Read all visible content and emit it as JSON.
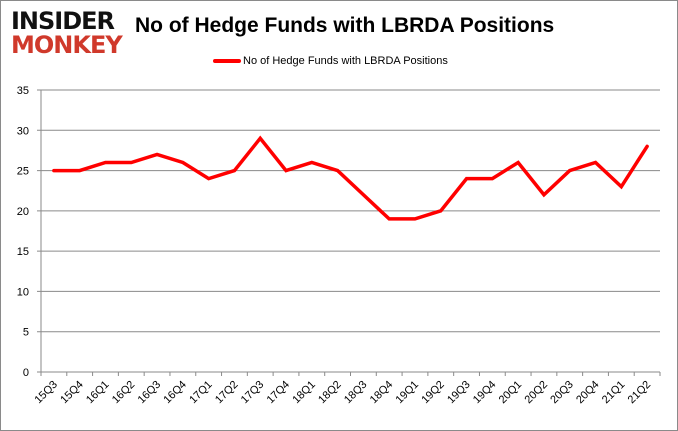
{
  "logo": {
    "line1": "INSIDER",
    "line2": "MONKEY"
  },
  "chart_data": {
    "type": "line",
    "title": "No of Hedge Funds with LBRDA Positions",
    "xlabel": "",
    "ylabel": "",
    "categories": [
      "15Q3",
      "15Q4",
      "16Q1",
      "16Q2",
      "16Q3",
      "16Q4",
      "17Q1",
      "17Q2",
      "17Q3",
      "17Q4",
      "18Q1",
      "18Q2",
      "18Q3",
      "18Q4",
      "19Q1",
      "19Q2",
      "19Q3",
      "19Q4",
      "20Q1",
      "20Q2",
      "20Q3",
      "20Q4",
      "21Q1",
      "21Q2"
    ],
    "series": [
      {
        "name": "No of Hedge Funds with LBRDA Positions",
        "color": "#ff0000",
        "values": [
          25,
          25,
          26,
          26,
          27,
          26,
          24,
          25,
          29,
          25,
          26,
          25,
          22,
          19,
          19,
          20,
          24,
          24,
          26,
          22,
          25,
          26,
          23,
          28
        ]
      }
    ],
    "ylim": [
      0,
      35
    ],
    "yticks": [
      0,
      5,
      10,
      15,
      20,
      25,
      30,
      35
    ],
    "grid": true,
    "legend": "top-center"
  }
}
